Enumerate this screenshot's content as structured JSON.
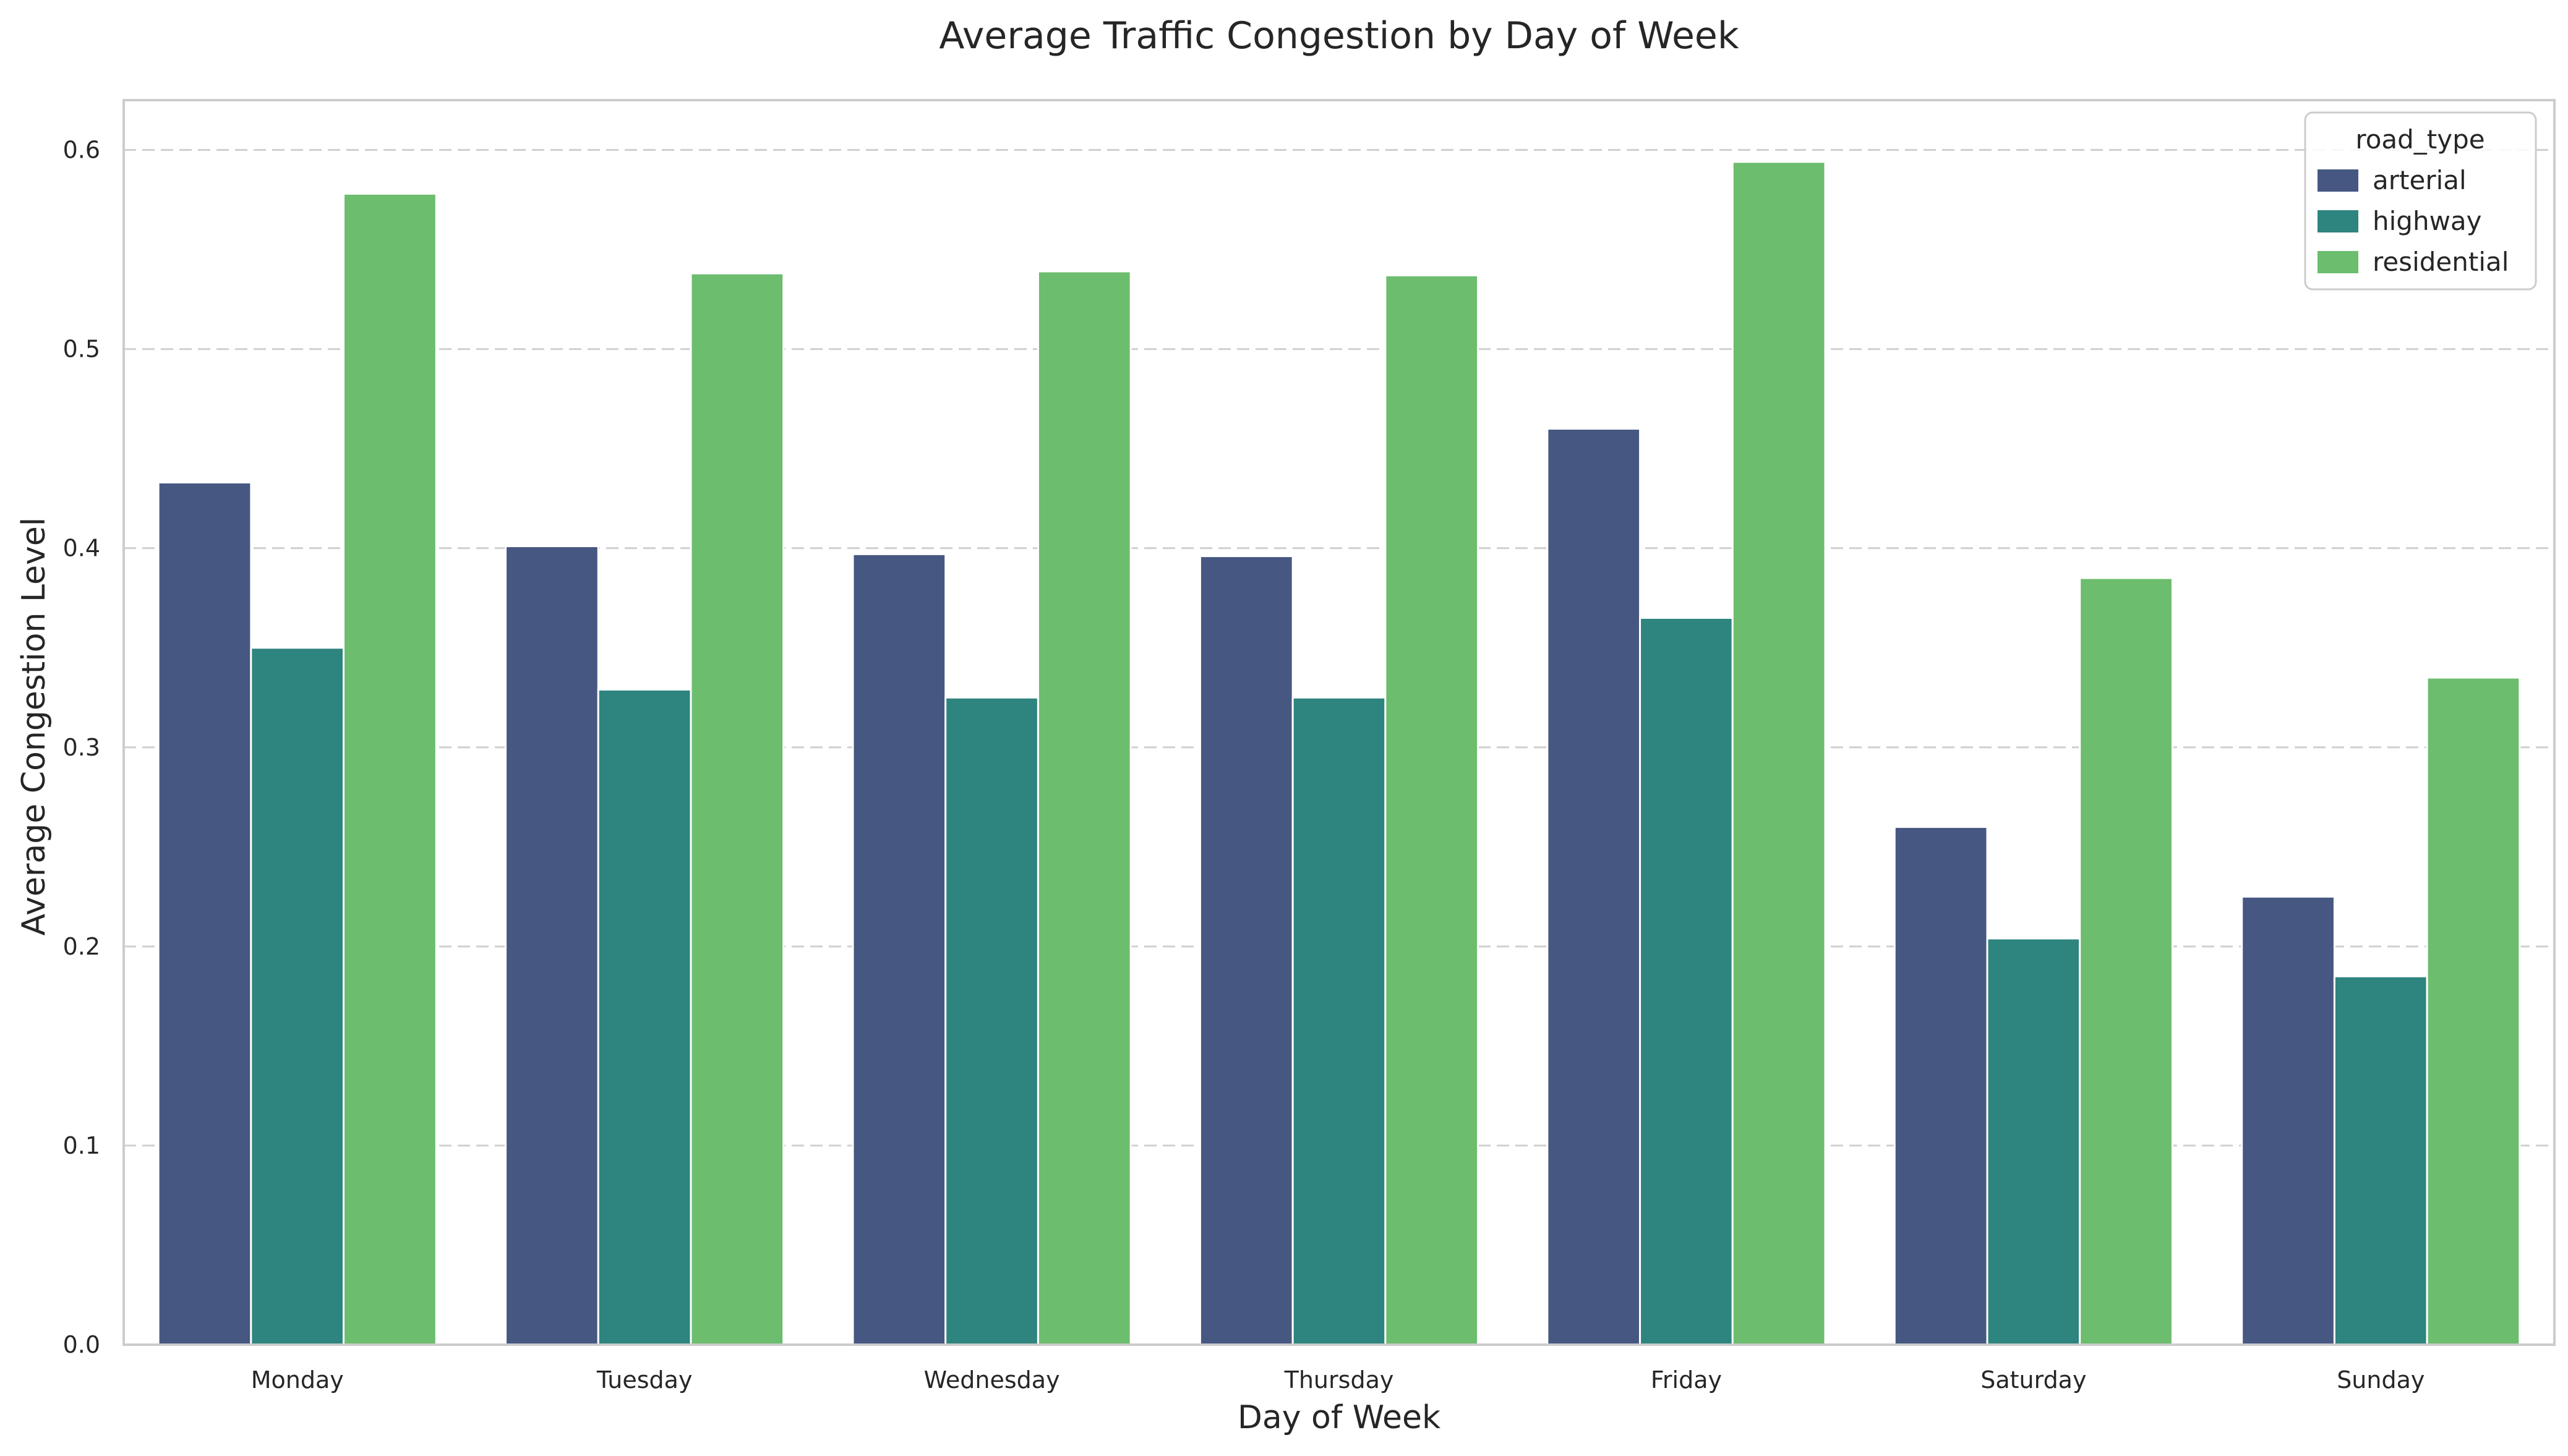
{
  "chart_data": {
    "type": "bar",
    "title": "Average Traffic Congestion by Day of Week",
    "xlabel": "Day of Week",
    "ylabel": "Average Congestion Level",
    "categories": [
      "Monday",
      "Tuesday",
      "Wednesday",
      "Thursday",
      "Friday",
      "Saturday",
      "Sunday"
    ],
    "ylim": [
      0,
      0.625
    ],
    "yticks": [
      0.0,
      0.1,
      0.2,
      0.3,
      0.4,
      0.5,
      0.6
    ],
    "ytick_labels": [
      "0.0",
      "0.1",
      "0.2",
      "0.3",
      "0.4",
      "0.5",
      "0.6"
    ],
    "grid": true,
    "legend": {
      "title": "road_type",
      "position": "top-right"
    },
    "series": [
      {
        "name": "arterial",
        "color": "#465782",
        "values": [
          0.433,
          0.401,
          0.397,
          0.396,
          0.46,
          0.26,
          0.225
        ]
      },
      {
        "name": "highway",
        "color": "#2e847e",
        "values": [
          0.35,
          0.329,
          0.325,
          0.325,
          0.365,
          0.204,
          0.185
        ]
      },
      {
        "name": "residential",
        "color": "#6cbd6d",
        "values": [
          0.578,
          0.538,
          0.539,
          0.537,
          0.594,
          0.385,
          0.335
        ]
      }
    ]
  }
}
